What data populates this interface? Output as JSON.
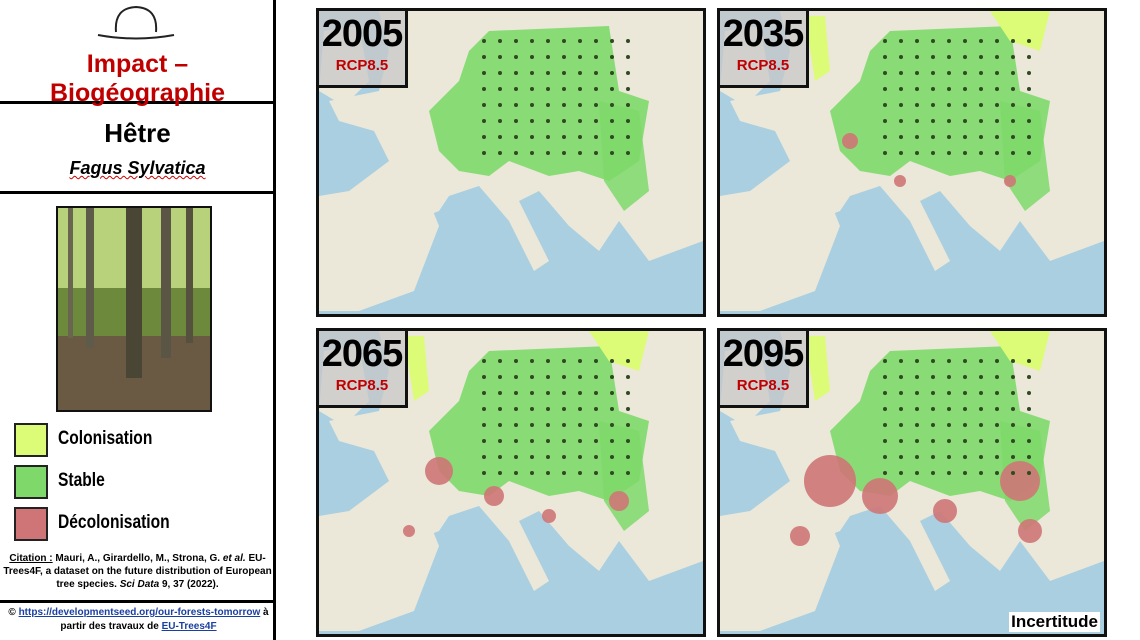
{
  "header": {
    "title": "Impact – Biogéographie"
  },
  "species": {
    "name": "Hêtre",
    "latin": "Fagus Sylvatica"
  },
  "legend": [
    {
      "label": "Colonisation",
      "color": "#dcfc78"
    },
    {
      "label": "Stable",
      "color": "#7ed96a"
    },
    {
      "label": "Décolonisation",
      "color": "#cf7577"
    }
  ],
  "citation": {
    "label": "Citation :",
    "authors": "Mauri, A., Girardello, M., Strona, G.",
    "etal": "et al.",
    "title": "EU-Trees4F, a dataset on the future distribution of European tree species.",
    "journal": "Sci Data",
    "ref": "9, 37 (2022)."
  },
  "credit": {
    "symbol": "©",
    "link": "https://developmentseed.org/our-forests-tomorrow",
    "text": "à partir des travaux de",
    "source": "EU-Trees4F"
  },
  "maps": [
    {
      "year": "2005",
      "scenario": "RCP8.5"
    },
    {
      "year": "2035",
      "scenario": "RCP8.5"
    },
    {
      "year": "2065",
      "scenario": "RCP8.5"
    },
    {
      "year": "2095",
      "scenario": "RCP8.5"
    }
  ],
  "uncertainty": "Incertitude"
}
